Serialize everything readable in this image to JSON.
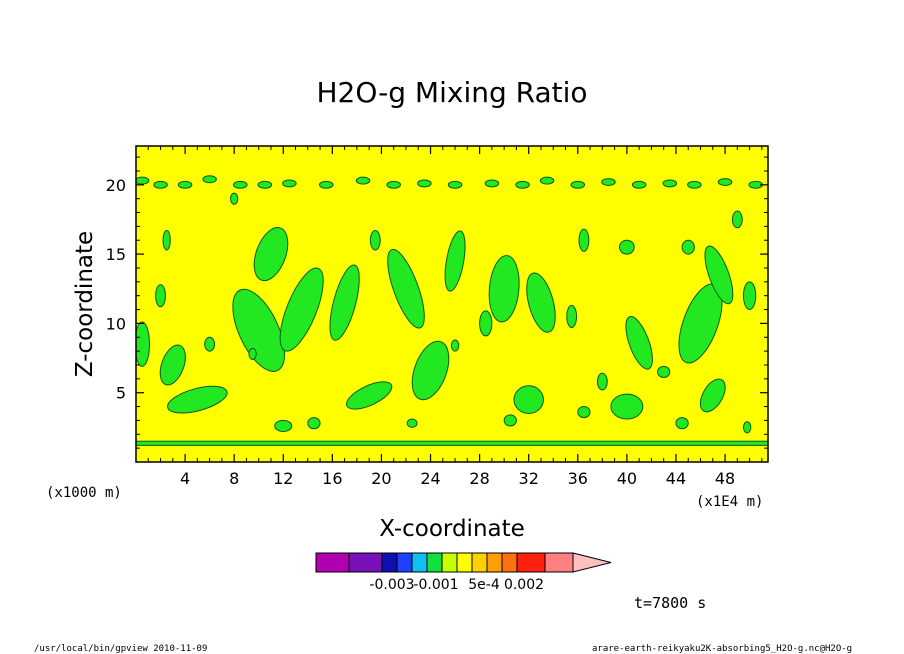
{
  "chart_data": {
    "type": "contour",
    "title": "H2O-g Mixing Ratio",
    "xlabel": "X-coordinate",
    "ylabel": "Z-coordinate",
    "x_ticks": [
      "4",
      "8",
      "12",
      "16",
      "20",
      "24",
      "28",
      "32",
      "36",
      "40",
      "44",
      "48"
    ],
    "y_ticks": [
      "5",
      "10",
      "15",
      "20"
    ],
    "x_unit_left": "(x1000 m)",
    "x_unit_right": "(x1E4 m)",
    "xlim": [
      0,
      51.5
    ],
    "ylim": [
      0,
      22.8
    ],
    "background_value_color": "#ffff00",
    "contour_fill_color": "#22e822",
    "line_color": "#0a5a1e",
    "colorbar": {
      "colors": [
        "#b000b0",
        "#7a10b8",
        "#1010b0",
        "#2040ff",
        "#10c0f0",
        "#10e040",
        "#c8ff00",
        "#ffff00",
        "#ffd000",
        "#ffa000",
        "#ff7010",
        "#ff2010",
        "#ff8080",
        "#ffc0c0"
      ],
      "labels": [
        "-0.003",
        "-0.001",
        "5e-4",
        "0.002"
      ]
    },
    "bottom_band": {
      "z_low": 1.2,
      "z_high": 1.5
    },
    "blobs": [
      [
        10,
        9.5,
        1.6,
        3.2,
        -25
      ],
      [
        11,
        15,
        1.2,
        2.0,
        20
      ],
      [
        13.5,
        11,
        1.2,
        3.2,
        22
      ],
      [
        17,
        11.5,
        0.9,
        2.8,
        15
      ],
      [
        24,
        6.6,
        1.3,
        2.2,
        20
      ],
      [
        22,
        12.5,
        1.0,
        3.0,
        -20
      ],
      [
        26,
        14.5,
        0.7,
        2.2,
        10
      ],
      [
        30,
        12.5,
        1.2,
        2.4,
        5
      ],
      [
        33,
        11.5,
        1.0,
        2.2,
        -15
      ],
      [
        46,
        10.0,
        1.4,
        3.0,
        20
      ],
      [
        47.5,
        13.5,
        0.8,
        2.2,
        -20
      ],
      [
        41,
        8.6,
        0.8,
        2.0,
        -20
      ],
      [
        5,
        4.5,
        2.5,
        0.8,
        -15
      ],
      [
        3,
        7,
        0.9,
        1.5,
        20
      ],
      [
        19,
        4.8,
        2.0,
        0.7,
        -25
      ],
      [
        32,
        4.5,
        1.2,
        1.0,
        0
      ],
      [
        40,
        4.0,
        1.3,
        0.9,
        0
      ],
      [
        47,
        4.8,
        0.8,
        1.3,
        30
      ],
      [
        0.5,
        8.5,
        0.6,
        1.6,
        0
      ],
      [
        2,
        12,
        0.4,
        0.8,
        0
      ],
      [
        2.5,
        16,
        0.3,
        0.7,
        0
      ],
      [
        8,
        19,
        0.3,
        0.4,
        0
      ],
      [
        28.5,
        10,
        0.5,
        0.9,
        0
      ],
      [
        35.5,
        10.5,
        0.4,
        0.8,
        0
      ],
      [
        36.5,
        16,
        0.4,
        0.8,
        0
      ],
      [
        40,
        15.5,
        0.6,
        0.5,
        0
      ],
      [
        45,
        15.5,
        0.5,
        0.5,
        0
      ],
      [
        50,
        12,
        0.5,
        1.0,
        0
      ],
      [
        49,
        17.5,
        0.4,
        0.6,
        0
      ],
      [
        12,
        2.6,
        0.7,
        0.4,
        0
      ],
      [
        14.5,
        2.8,
        0.5,
        0.4,
        0
      ],
      [
        22.5,
        2.8,
        0.4,
        0.3,
        0
      ],
      [
        30.5,
        3.0,
        0.5,
        0.4,
        0
      ],
      [
        36.5,
        3.6,
        0.5,
        0.4,
        0
      ],
      [
        44.5,
        2.8,
        0.5,
        0.4,
        0
      ],
      [
        49.8,
        2.5,
        0.3,
        0.4,
        0
      ],
      [
        26,
        8.4,
        0.3,
        0.4,
        0
      ],
      [
        19.5,
        16,
        0.4,
        0.7,
        0
      ],
      [
        6,
        8.5,
        0.4,
        0.5,
        0
      ],
      [
        38,
        5.8,
        0.4,
        0.6,
        0
      ],
      [
        43,
        6.5,
        0.5,
        0.4,
        0
      ],
      [
        9.5,
        7.8,
        0.3,
        0.4,
        0
      ]
    ],
    "top_blobs": [
      [
        0.5,
        20.3
      ],
      [
        2,
        20.0
      ],
      [
        4,
        20.0
      ],
      [
        6,
        20.4
      ],
      [
        8.5,
        20.0
      ],
      [
        10.5,
        20.0
      ],
      [
        12.5,
        20.1
      ],
      [
        15.5,
        20.0
      ],
      [
        18.5,
        20.3
      ],
      [
        21,
        20.0
      ],
      [
        23.5,
        20.1
      ],
      [
        26,
        20.0
      ],
      [
        29,
        20.1
      ],
      [
        31.5,
        20.0
      ],
      [
        33.5,
        20.3
      ],
      [
        36,
        20.0
      ],
      [
        38.5,
        20.2
      ],
      [
        41,
        20.0
      ],
      [
        43.5,
        20.1
      ],
      [
        45.5,
        20.0
      ],
      [
        48,
        20.2
      ],
      [
        50.5,
        20.0
      ]
    ]
  },
  "annotations": {
    "time": "t=7800 s",
    "footer_left": "/usr/local/bin/gpview   2010-11-09",
    "footer_right": "arare-earth-reikyaku2K-absorbing5_H2O-g.nc@H2O-g"
  }
}
